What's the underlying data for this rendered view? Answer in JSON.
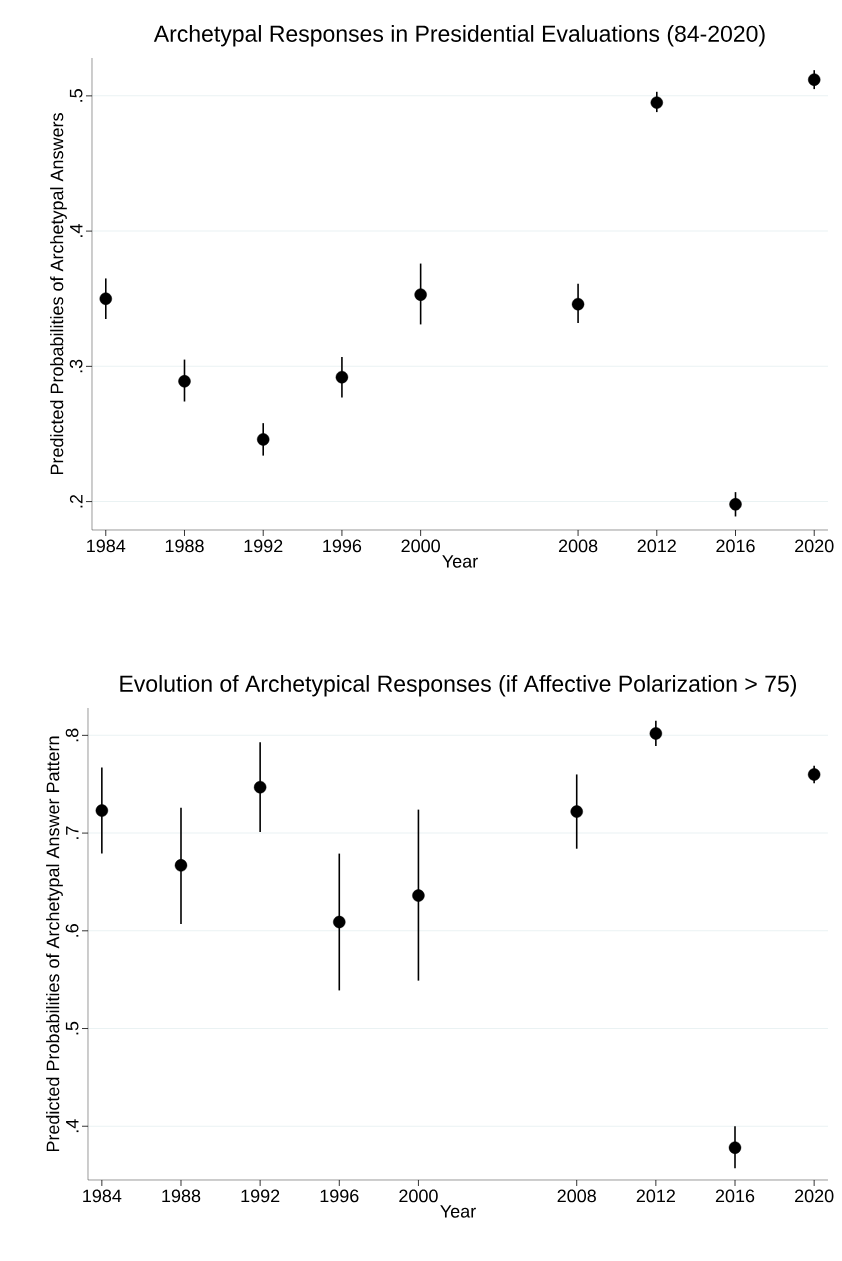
{
  "chart_data": [
    {
      "type": "scatter",
      "title": "Archetypal Responses in Presidential Evaluations (84-2020)",
      "xlabel": "Year",
      "ylabel": "Predicted Probabilities of Archetypal Answers",
      "x": [
        1984,
        1988,
        1992,
        1996,
        2000,
        2008,
        2012,
        2016,
        2020
      ],
      "values": [
        0.35,
        0.289,
        0.246,
        0.292,
        0.353,
        0.346,
        0.495,
        0.198,
        0.512
      ],
      "errors": [
        [
          0.335,
          0.365
        ],
        [
          0.274,
          0.305
        ],
        [
          0.234,
          0.258
        ],
        [
          0.277,
          0.307
        ],
        [
          0.331,
          0.376
        ],
        [
          0.332,
          0.361
        ],
        [
          0.488,
          0.503
        ],
        [
          0.189,
          0.207
        ],
        [
          0.505,
          0.519
        ]
      ],
      "color": "#000000",
      "marker": "circle",
      "grid": "y",
      "xlim": [
        1983.3,
        2020.7
      ],
      "ylim": [
        0.179,
        0.528
      ],
      "xticks": [
        1984,
        1988,
        1992,
        1996,
        2000,
        2008,
        2012,
        2016,
        2020
      ],
      "yticks": [
        {
          "value": 0.2,
          "label": ".2"
        },
        {
          "value": 0.3,
          "label": ".3"
        },
        {
          "value": 0.4,
          "label": ".4"
        },
        {
          "value": 0.5,
          "label": ".5"
        }
      ]
    },
    {
      "type": "scatter",
      "title": "Evolution of Archetypical Responses (if Affective Polarization > 75)",
      "xlabel": "Year",
      "ylabel": "Predicted Probabilities of Archetypal Answer Pattern",
      "x": [
        1984,
        1988,
        1992,
        1996,
        2000,
        2008,
        2012,
        2016,
        2020
      ],
      "values": [
        0.723,
        0.667,
        0.747,
        0.609,
        0.636,
        0.722,
        0.802,
        0.378,
        0.76
      ],
      "errors": [
        [
          0.679,
          0.767
        ],
        [
          0.607,
          0.726
        ],
        [
          0.701,
          0.793
        ],
        [
          0.539,
          0.679
        ],
        [
          0.549,
          0.724
        ],
        [
          0.684,
          0.76
        ],
        [
          0.789,
          0.815
        ],
        [
          0.357,
          0.4
        ],
        [
          0.751,
          0.769
        ]
      ],
      "color": "#000000",
      "marker": "circle",
      "grid": "y",
      "xlim": [
        1983.3,
        2020.7
      ],
      "ylim": [
        0.345,
        0.828
      ],
      "xticks": [
        1984,
        1988,
        1992,
        1996,
        2000,
        2008,
        2012,
        2016,
        2020
      ],
      "yticks": [
        {
          "value": 0.4,
          "label": ".4"
        },
        {
          "value": 0.5,
          "label": ".5"
        },
        {
          "value": 0.6,
          "label": ".6"
        },
        {
          "value": 0.7,
          "label": ".7"
        },
        {
          "value": 0.8,
          "label": ".8"
        }
      ]
    }
  ]
}
